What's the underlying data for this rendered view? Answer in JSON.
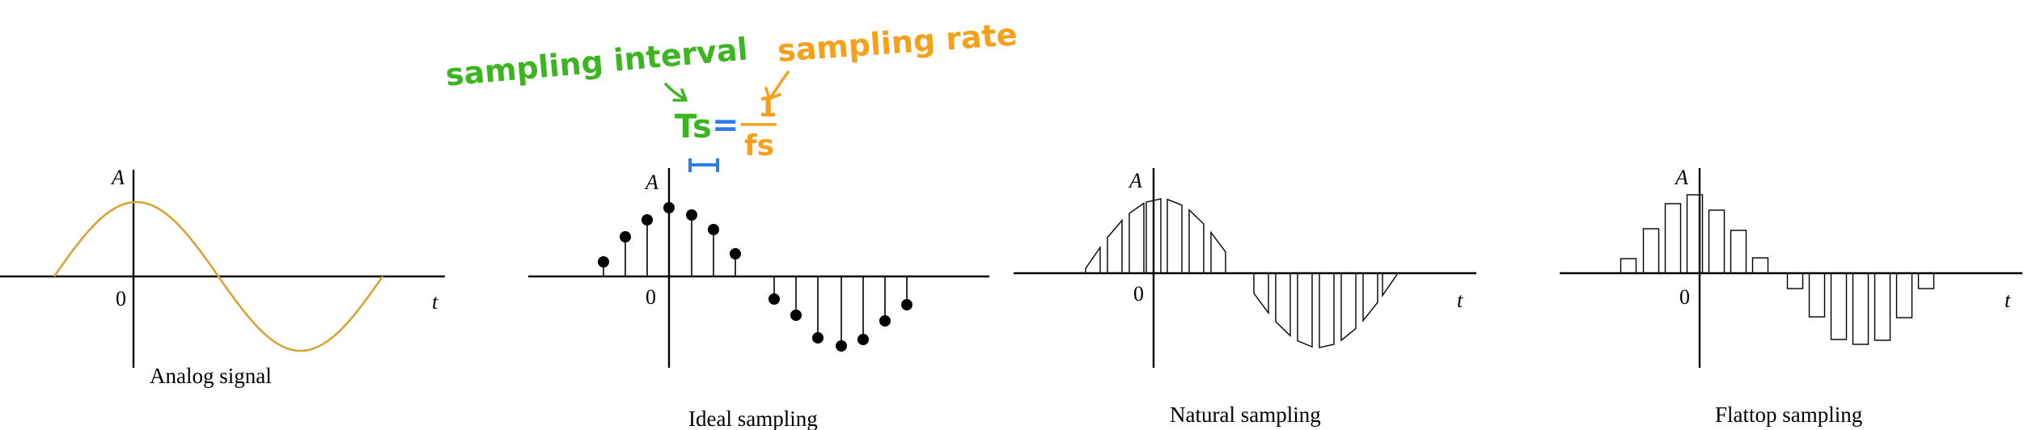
{
  "axis_labels": {
    "amplitude": "A",
    "time": "t",
    "origin": "0"
  },
  "panels": [
    {
      "id": "analog",
      "caption": "Analog signal"
    },
    {
      "id": "ideal",
      "caption": "Ideal sampling"
    },
    {
      "id": "natural",
      "caption": "Natural sampling"
    },
    {
      "id": "flattop",
      "caption": "Flattop sampling"
    }
  ],
  "annotation": {
    "sampling_interval": "sampling interval",
    "sampling_rate": "sampling rate",
    "ts_symbol": "Ts",
    "equals": "=",
    "numerator": "1",
    "fs_symbol": "fs",
    "colors": {
      "interval": "#3cb521",
      "rate": "#f5a01a",
      "marker": "#2f7de1"
    }
  },
  "colors": {
    "signal": "#d4a536",
    "axis": "#000000",
    "stem": "#000000"
  }
}
